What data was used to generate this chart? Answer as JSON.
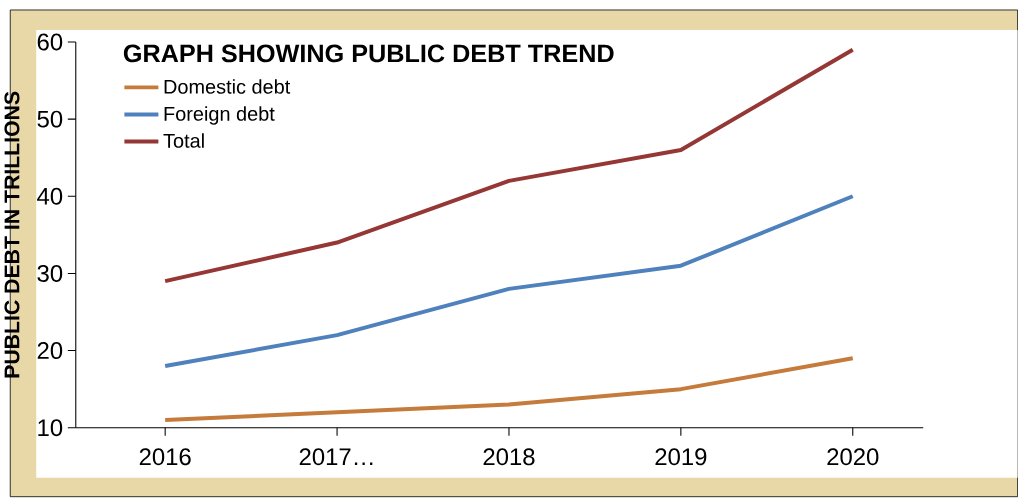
{
  "chart_data": {
    "type": "line",
    "title": "GRAPH SHOWING PUBLIC DEBT TREND",
    "ylabel": "PUBLIC DEBT IN TRILLIONS",
    "categories": [
      "2016",
      "2017…",
      "2018",
      "2019",
      "2020"
    ],
    "series": [
      {
        "name": "Domestic debt",
        "color": "#c47b3c",
        "values": [
          11,
          12,
          13,
          15,
          19
        ]
      },
      {
        "name": "Foreign debt",
        "color": "#4f81bd",
        "values": [
          18,
          22,
          28,
          31,
          40
        ]
      },
      {
        "name": "Total",
        "color": "#953735",
        "values": [
          29,
          34,
          42,
          46,
          59
        ]
      }
    ],
    "ylim": [
      10,
      60
    ],
    "yticks": [
      10,
      20,
      30,
      40,
      50,
      60
    ],
    "legend": "top left",
    "marker": "none",
    "line_style": "solid"
  }
}
